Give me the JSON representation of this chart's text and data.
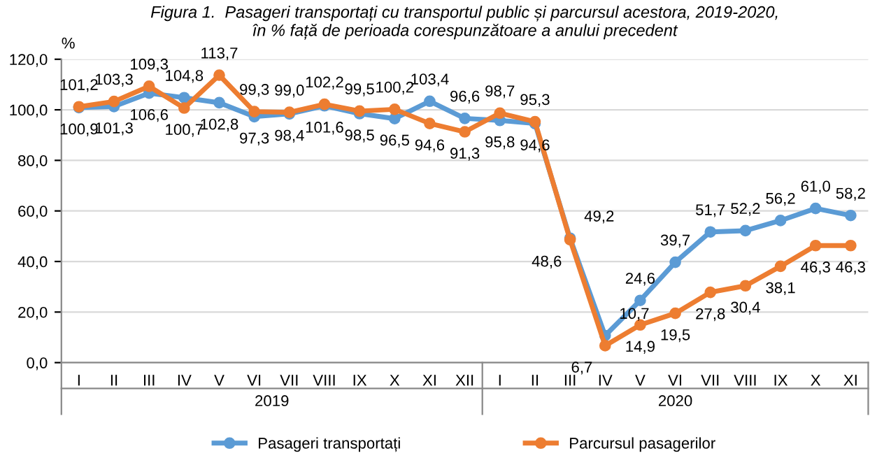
{
  "chart_data": {
    "type": "line",
    "title": "Figura 1.  Pasageri transportați cu transportul public și parcursul acestora, 2019-2020,\nîn % față de perioada corespunzătoare a anului precedent",
    "ylabel": "%",
    "categories": [
      "I",
      "II",
      "III",
      "IV",
      "V",
      "VI",
      "VII",
      "VIII",
      "IX",
      "X",
      "XI",
      "XII",
      "I",
      "II",
      "III",
      "IV",
      "V",
      "VI",
      "VII",
      "VIII",
      "IX",
      "X",
      "XI"
    ],
    "annotations": [
      "2019",
      "2020"
    ],
    "series": [
      {
        "name": "Pasageri transportați",
        "color": "#5b9bd5",
        "values": [
          100.9,
          101.3,
          106.6,
          104.8,
          102.8,
          97.3,
          98.4,
          101.6,
          98.5,
          96.5,
          103.4,
          96.6,
          95.8,
          94.6,
          49.2,
          10.7,
          24.6,
          39.7,
          51.7,
          52.2,
          56.2,
          61.0,
          58.2
        ],
        "value_labels": [
          "100,9",
          "101,3",
          "106,6",
          "104,8",
          "102,8",
          "97,3",
          "98,4",
          "101,6",
          "98,5",
          "96,5",
          "103,4",
          "96,6",
          "95,8",
          "94,6",
          "49,2",
          "10,7",
          "24,6",
          "39,7",
          "51,7",
          "52,2",
          "56,2",
          "61,0",
          "58,2"
        ]
      },
      {
        "name": "Parcursul pasagerilor",
        "color": "#ed7d31",
        "values": [
          101.2,
          103.3,
          109.3,
          100.7,
          113.7,
          99.3,
          99.0,
          102.2,
          99.5,
          100.2,
          94.6,
          91.3,
          98.7,
          95.3,
          48.6,
          6.7,
          14.9,
          19.5,
          27.8,
          30.4,
          38.1,
          46.3,
          46.3
        ],
        "value_labels": [
          "101,2",
          "103,3",
          "109,3",
          "100,7",
          "113,7",
          "99,3",
          "99,0",
          "102,2",
          "99,5",
          "100,2",
          "94,6",
          "91,3",
          "98,7",
          "95,3",
          "48,6",
          "6,7",
          "14,9",
          "19,5",
          "27,8",
          "30,4",
          "38,1",
          "46,3",
          "46,3"
        ]
      }
    ],
    "ylim": [
      0,
      120
    ],
    "yticks": [
      {
        "value": 0,
        "label": "0,0"
      },
      {
        "value": 20,
        "label": "20,0"
      },
      {
        "value": 40,
        "label": "40,0"
      },
      {
        "value": 60,
        "label": "60,0"
      },
      {
        "value": 80,
        "label": "80,0"
      },
      {
        "value": 100,
        "label": "100,0"
      },
      {
        "value": 120,
        "label": "120,0"
      }
    ],
    "grid": "y",
    "legend": "bottom",
    "marker": "circle",
    "line_style": "solid"
  }
}
